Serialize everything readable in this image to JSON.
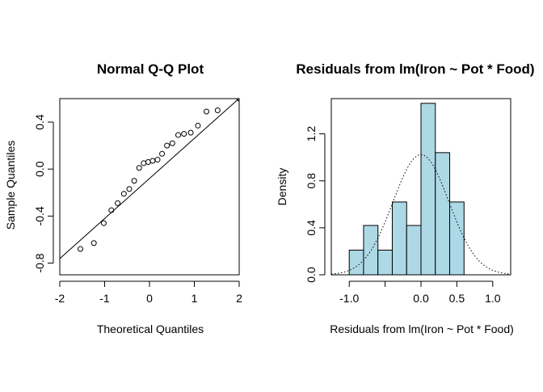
{
  "chart_data": [
    {
      "type": "scatter",
      "title": "Normal Q-Q Plot",
      "xlabel": "Theoretical Quantiles",
      "ylabel": "Sample Quantiles",
      "xlim": [
        -2,
        2
      ],
      "ylim": [
        -0.9,
        0.6
      ],
      "xticks": [
        -2,
        -1,
        0,
        1,
        2
      ],
      "xtick_labels": [
        "-2",
        "-1",
        "0",
        "1",
        "2"
      ],
      "yticks": [
        -0.8,
        -0.4,
        0.0,
        0.4
      ],
      "ytick_labels": [
        "-0.8",
        "-0.4",
        "0.0",
        "0.4"
      ],
      "points": [
        {
          "x": -1.54,
          "y": -0.68
        },
        {
          "x": -1.24,
          "y": -0.63
        },
        {
          "x": -1.02,
          "y": -0.46
        },
        {
          "x": -0.85,
          "y": -0.35
        },
        {
          "x": -0.71,
          "y": -0.29
        },
        {
          "x": -0.57,
          "y": -0.21
        },
        {
          "x": -0.45,
          "y": -0.17
        },
        {
          "x": -0.34,
          "y": -0.1
        },
        {
          "x": -0.23,
          "y": 0.01
        },
        {
          "x": -0.13,
          "y": 0.05
        },
        {
          "x": -0.03,
          "y": 0.06
        },
        {
          "x": 0.07,
          "y": 0.07
        },
        {
          "x": 0.18,
          "y": 0.08
        },
        {
          "x": 0.28,
          "y": 0.13
        },
        {
          "x": 0.39,
          "y": 0.2
        },
        {
          "x": 0.51,
          "y": 0.22
        },
        {
          "x": 0.64,
          "y": 0.29
        },
        {
          "x": 0.77,
          "y": 0.3
        },
        {
          "x": 0.92,
          "y": 0.31
        },
        {
          "x": 1.08,
          "y": 0.37
        },
        {
          "x": 1.27,
          "y": 0.49
        },
        {
          "x": 1.52,
          "y": 0.5
        },
        {
          "x": 2.0,
          "y": 0.6
        }
      ],
      "reference_line": {
        "x1": -2.2,
        "y1": -0.83,
        "x2": 2.2,
        "y2": 0.67
      }
    },
    {
      "type": "bar",
      "subtype": "histogram",
      "title": "Residuals from lm(Iron ~ Pot * Food)",
      "xlabel": "Residuals from lm(Iron ~ Pot * Food)",
      "ylabel": "Density",
      "xlim": [
        -1.25,
        1.25
      ],
      "ylim": [
        0,
        1.5
      ],
      "xticks": [
        -1.0,
        0.0,
        0.5,
        1.0
      ],
      "xtick_labels": [
        "-1.0",
        "0.0",
        "0.5",
        "1.0"
      ],
      "xticks_unlabeled": [
        -0.5
      ],
      "yticks": [
        0.0,
        0.4,
        0.8,
        1.2
      ],
      "ytick_labels": [
        "0.0",
        "0.4",
        "0.8",
        "1.2"
      ],
      "bin_edges": [
        -1.0,
        -0.8,
        -0.6,
        -0.4,
        -0.2,
        0.0,
        0.2,
        0.4,
        0.6
      ],
      "values": [
        0.21,
        0.42,
        0.21,
        0.62,
        0.42,
        1.46,
        1.04,
        0.62
      ],
      "bar_color": "#add8e6",
      "density_curve": {
        "style": "dotted",
        "distribution": "normal",
        "mean": 0.0,
        "sd": 0.39
      }
    }
  ]
}
